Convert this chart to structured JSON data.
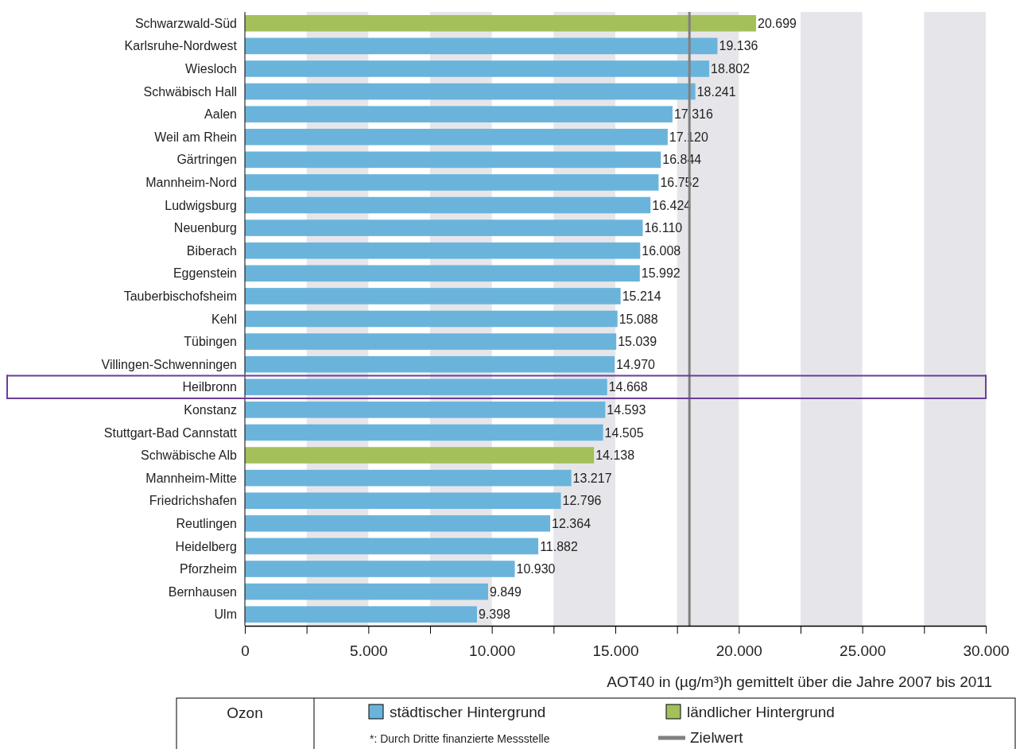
{
  "chart_data": {
    "type": "bar",
    "orientation": "horizontal",
    "xlabel": "AOT40 in (µg/m³)h gemittelt über die Jahre 2007 bis 2011",
    "categories": [
      "Schwarzwald-Süd",
      "Karlsruhe-Nordwest",
      "Wiesloch",
      "Schwäbisch Hall",
      "Aalen",
      "Weil am Rhein",
      "Gärtringen",
      "Mannheim-Nord",
      "Ludwigsburg",
      "Neuenburg",
      "Biberach",
      "Eggenstein",
      "Tauberbischofsheim",
      "Kehl",
      "Tübingen",
      "Villingen-Schwenningen",
      "Heilbronn",
      "Konstanz",
      "Stuttgart-Bad Cannstatt",
      "Schwäbische Alb",
      "Mannheim-Mitte",
      "Friedrichshafen",
      "Reutlingen",
      "Heidelberg",
      "Pforzheim",
      "Bernhausen",
      "Ulm"
    ],
    "series": [
      {
        "name": "städtischer Hintergrund",
        "color": "#6ab4dc",
        "values": [
          null,
          19136,
          18802,
          18241,
          17316,
          17120,
          16844,
          16752,
          16424,
          16110,
          16008,
          15992,
          15214,
          15088,
          15039,
          14970,
          14668,
          14593,
          14505,
          null,
          13217,
          12796,
          12364,
          11882,
          10930,
          9849,
          9398
        ],
        "value_labels": [
          null,
          "19.136",
          "18.802",
          "18.241",
          "17.316",
          "17.120",
          "16.844",
          "16.752",
          "16.424",
          "16.110",
          "16.008",
          "15.992",
          "15.214",
          "15.088",
          "15.039",
          "14.970",
          "14.668",
          "14.593",
          "14.505",
          null,
          "13.217",
          "12.796",
          "12.364",
          "11.882",
          "10.930",
          "9.849",
          "9.398"
        ]
      },
      {
        "name": "ländlicher Hintergrund",
        "color": "#a3c05a",
        "values": [
          20699,
          null,
          null,
          null,
          null,
          null,
          null,
          null,
          null,
          null,
          null,
          null,
          null,
          null,
          null,
          null,
          null,
          null,
          null,
          14138,
          null,
          null,
          null,
          null,
          null,
          null,
          null
        ],
        "value_labels": [
          "20.699",
          null,
          null,
          null,
          null,
          null,
          null,
          null,
          null,
          null,
          null,
          null,
          null,
          null,
          null,
          null,
          null,
          null,
          null,
          "14.138",
          null,
          null,
          null,
          null,
          null,
          null,
          null
        ]
      }
    ],
    "xlim": [
      0,
      30000
    ],
    "xticks": [
      0,
      {
        "value": 2500,
        "label": null
      },
      {
        "value": 5000,
        "label": "5.000"
      },
      {
        "value": 7500,
        "label": null
      },
      {
        "value": 10000,
        "label": "10.000"
      },
      {
        "value": 12500,
        "label": null
      },
      {
        "value": 15000,
        "label": "15.000"
      },
      {
        "value": 17500,
        "label": null
      },
      {
        "value": 20000,
        "label": "20.000"
      },
      {
        "value": 22500,
        "label": null
      },
      {
        "value": 25000,
        "label": "25.000"
      },
      {
        "value": 27500,
        "label": null
      },
      {
        "value": 30000,
        "label": "30.000"
      }
    ],
    "ref_lines": [
      {
        "axis": "x",
        "value": 18000,
        "label": "Zielwert",
        "color": "#808080"
      }
    ],
    "bands": [
      {
        "axis": "x",
        "from": 2500,
        "to": 5000,
        "color": "#e6e6ea"
      },
      {
        "axis": "x",
        "from": 7500,
        "to": 10000,
        "color": "#e6e6ea"
      },
      {
        "axis": "x",
        "from": 12500,
        "to": 15000,
        "color": "#e6e6ea"
      },
      {
        "axis": "x",
        "from": 17500,
        "to": 20000,
        "color": "#e6e6ea"
      },
      {
        "axis": "x",
        "from": 22500,
        "to": 25000,
        "color": "#e6e6ea"
      },
      {
        "axis": "x",
        "from": 27500,
        "to": 30000,
        "color": "#e6e6ea"
      }
    ],
    "legend": "bottom",
    "annotations": [
      "Ozon",
      "*: Durch Dritte finanzierte Messstelle"
    ]
  }
}
